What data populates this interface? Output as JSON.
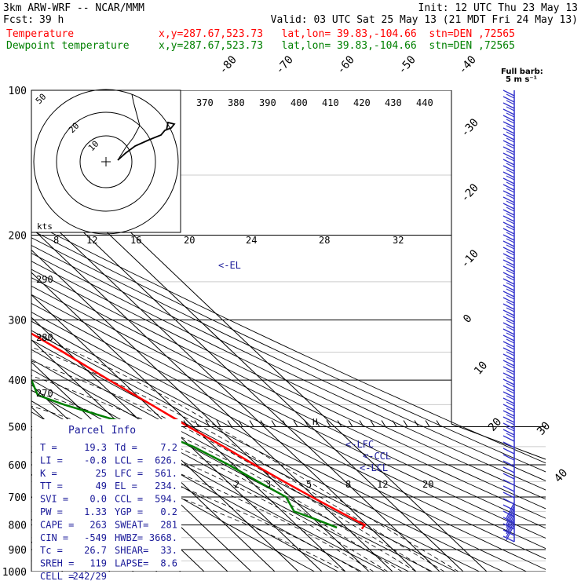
{
  "header": {
    "model": "3km ARW-WRF -- NCAR/MMM",
    "init": "Init: 12 UTC Thu 23 May 13",
    "fcst_label": "Fcst:",
    "fcst_value": "39 h",
    "valid": "Valid: 03 UTC Sat 25 May 13 (21 MDT Fri 24 May 13)",
    "temp_label": "Temperature",
    "temp_info": "x,y=287.67,523.73   lat,lon= 39.83,-104.66  stn=DEN ,72565",
    "dew_label": "Dewpoint temperature",
    "dew_info": "x,y=287.67,523.73   lat,lon= 39.83,-104.66  stn=DEN ,72565",
    "temp_color": "#ff0000",
    "dew_color": "#008000"
  },
  "barb_key": {
    "title": "Full barb:",
    "value": "5 m s⁻¹"
  },
  "parcel": {
    "title": "Parcel Info",
    "rows": [
      {
        "l1": "T   =",
        "v1": "19.3",
        "l2": "Td =",
        "v2": "7.2"
      },
      {
        "l1": "LI  =",
        "v1": "-0.8",
        "l2": "LCL =",
        "v2": "626."
      },
      {
        "l1": "K   =",
        "v1": "25",
        "l2": "LFC =",
        "v2": "561."
      },
      {
        "l1": "TT  =",
        "v1": "49",
        "l2": "EL  =",
        "v2": "234."
      },
      {
        "l1": "SVI =",
        "v1": "0.0",
        "l2": "CCL =",
        "v2": "594."
      },
      {
        "l1": "PW  =",
        "v1": "1.33",
        "l2": "YGP =",
        "v2": "0.2"
      },
      {
        "l1": "CAPE =",
        "v1": "263",
        "l2": "SWEAT=",
        "v2": "281"
      },
      {
        "l1": "CIN =",
        "v1": "-549",
        "l2": "HWBZ=",
        "v2": "3668."
      },
      {
        "l1": "Tc  =",
        "v1": "26.7",
        "l2": "SHEAR=",
        "v2": "33."
      },
      {
        "l1": "SREH =",
        "v1": "119",
        "l2": "LAPSE=",
        "v2": "8.6"
      },
      {
        "l1": "CELL =",
        "v1": "242/29",
        "l2": "",
        "v2": ""
      }
    ],
    "color": "#1a1a99"
  },
  "annotations": {
    "el": "<-EL",
    "lfc": "<-LFC",
    "ccl": "<-CCL",
    "lcl": "<-LCL",
    "hodo_kts": "kts",
    "hodo_ring1": "10",
    "hodo_ring2": "20",
    "hodo_ring3": "50"
  },
  "chart_data": {
    "type": "line",
    "subtype": "skew-T log-P diagram",
    "y_axis": {
      "scale": "log",
      "range": [
        100,
        1000
      ],
      "ticks": [
        100,
        200,
        300,
        400,
        500,
        600,
        700,
        800,
        900,
        1000
      ]
    },
    "isotherm_labels": [
      -80,
      -70,
      -60,
      -50,
      -40,
      -30,
      -20,
      -10,
      0,
      10,
      20,
      30,
      40
    ],
    "theta_labels": [
      370,
      380,
      390,
      400,
      410,
      420,
      430,
      440
    ],
    "theta_labels_mid": [
      290,
      280,
      270
    ],
    "mixing_ratio_top": [
      8,
      12,
      16,
      20,
      24,
      28,
      32
    ],
    "mixing_ratio_low": [
      2,
      3,
      5,
      8,
      12,
      20
    ],
    "series": [
      {
        "name": "Temperature",
        "color": "#ff0000",
        "points": [
          {
            "p": 100,
            "t": -38
          },
          {
            "p": 110,
            "t": -44
          },
          {
            "p": 125,
            "t": -50
          },
          {
            "p": 140,
            "t": -55
          },
          {
            "p": 160,
            "t": -60
          },
          {
            "p": 180,
            "t": -63
          },
          {
            "p": 200,
            "t": -62
          },
          {
            "p": 220,
            "t": -57
          },
          {
            "p": 250,
            "t": -50
          },
          {
            "p": 300,
            "t": -41
          },
          {
            "p": 350,
            "t": -32
          },
          {
            "p": 400,
            "t": -25
          },
          {
            "p": 450,
            "t": -18
          },
          {
            "p": 500,
            "t": -12
          },
          {
            "p": 550,
            "t": -6
          },
          {
            "p": 600,
            "t": -1
          },
          {
            "p": 650,
            "t": 4
          },
          {
            "p": 700,
            "t": 9
          },
          {
            "p": 750,
            "t": 14
          },
          {
            "p": 780,
            "t": 17
          },
          {
            "p": 800,
            "t": 19
          },
          {
            "p": 815,
            "t": 16
          }
        ]
      },
      {
        "name": "Dewpoint temperature",
        "color": "#008000",
        "points": [
          {
            "p": 100,
            "t": -70
          },
          {
            "p": 120,
            "t": -76
          },
          {
            "p": 150,
            "t": -83
          },
          {
            "p": 200,
            "t": -84
          },
          {
            "p": 250,
            "t": -78
          },
          {
            "p": 300,
            "t": -68
          },
          {
            "p": 350,
            "t": -64
          },
          {
            "p": 400,
            "t": -58
          },
          {
            "p": 430,
            "t": -62
          },
          {
            "p": 450,
            "t": -55
          },
          {
            "p": 480,
            "t": -42
          },
          {
            "p": 500,
            "t": -31
          },
          {
            "p": 550,
            "t": -19
          },
          {
            "p": 600,
            "t": -12
          },
          {
            "p": 650,
            "t": -7
          },
          {
            "p": 700,
            "t": -2
          },
          {
            "p": 750,
            "t": -5
          },
          {
            "p": 780,
            "t": 1
          },
          {
            "p": 810,
            "t": 6
          }
        ]
      }
    ],
    "hodograph": [
      [
        0,
        0
      ],
      [
        0.15,
        0.05
      ],
      [
        0.3,
        0.15
      ],
      [
        0.55,
        0.3
      ],
      [
        0.7,
        0.42
      ],
      [
        0.72,
        0.5
      ],
      [
        0.78,
        0.48
      ],
      [
        0.8,
        0.56
      ]
    ]
  }
}
